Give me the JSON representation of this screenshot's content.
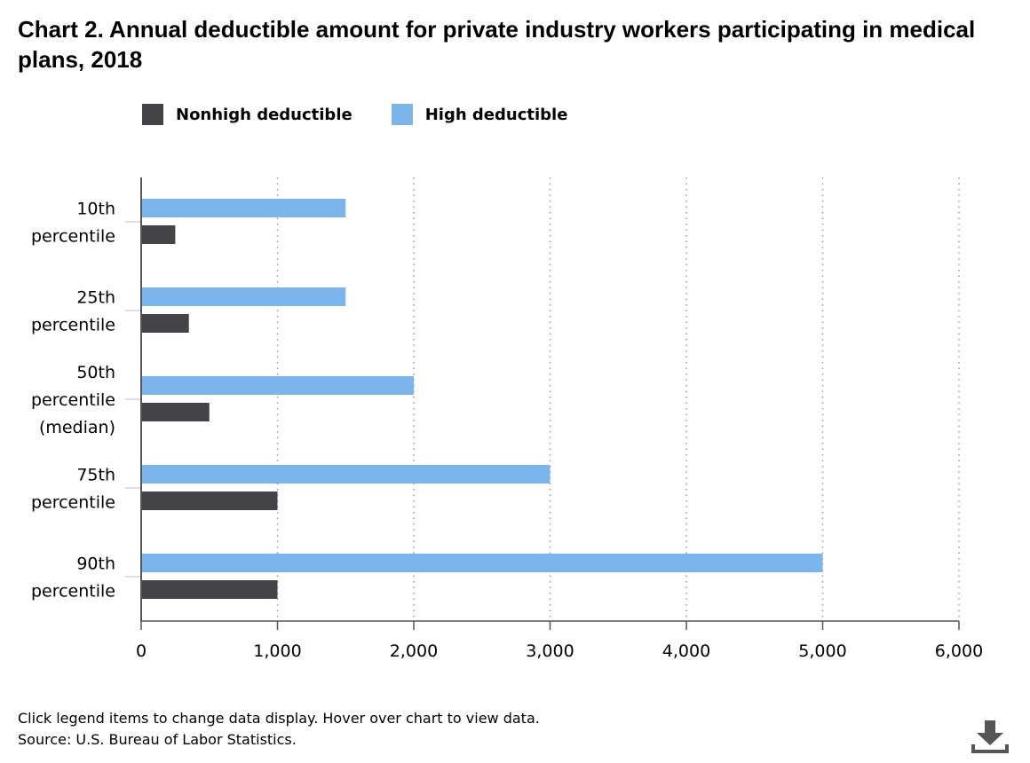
{
  "title": "Chart 2. Annual deductible amount for private industry workers participating in medical plans, 2018",
  "legend": [
    {
      "name": "Nonhigh deductible",
      "color": "#434348"
    },
    {
      "name": "High deductible",
      "color": "#7cb5ec"
    }
  ],
  "notes": {
    "instruction": "Click legend items to change data display. Hover over chart to view data.",
    "source": "Source: U.S. Bureau of Labor Statistics."
  },
  "icons": {
    "download": "download-icon"
  },
  "chart_data": {
    "type": "bar",
    "orientation": "horizontal",
    "categories": [
      [
        "10th",
        "percentile"
      ],
      [
        "25th",
        "percentile"
      ],
      [
        "50th",
        "percentile",
        "(median)"
      ],
      [
        "75th",
        "percentile"
      ],
      [
        "90th",
        "percentile"
      ]
    ],
    "series": [
      {
        "name": "High deductible",
        "color": "#7cb5ec",
        "values": [
          1500,
          1500,
          2000,
          3000,
          5000
        ]
      },
      {
        "name": "Nonhigh deductible",
        "color": "#434348",
        "values": [
          250,
          350,
          500,
          1000,
          1000
        ]
      }
    ],
    "xlim": [
      0,
      6000
    ],
    "xticks": [
      0,
      1000,
      2000,
      3000,
      4000,
      5000,
      6000
    ],
    "xtick_labels": [
      "0",
      "1,000",
      "2,000",
      "3,000",
      "4,000",
      "5,000",
      "6,000"
    ],
    "grid": "vertical dotted",
    "legend_position": "top-left",
    "xlabel": "",
    "ylabel": ""
  }
}
